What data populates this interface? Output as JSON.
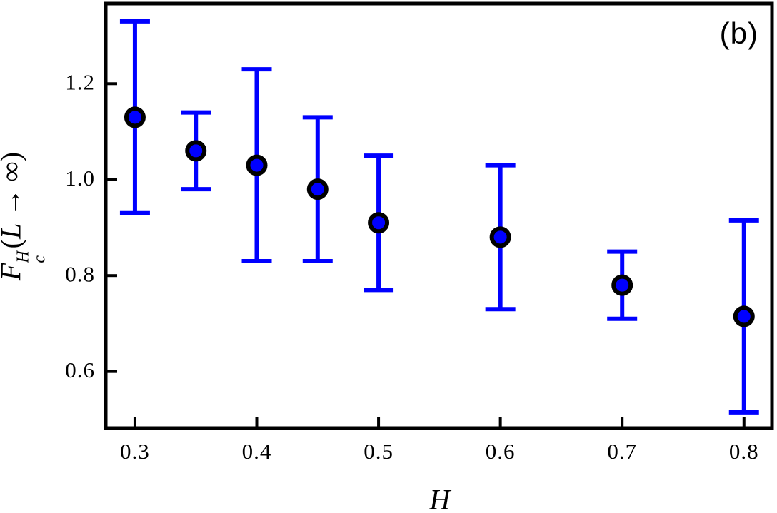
{
  "figure": {
    "panel_label": "(b)",
    "background_color": "#ffffff"
  },
  "chart_data": {
    "type": "scatter",
    "title": "",
    "xlabel": "H",
    "ylabel": {
      "plain": "F_c^H(L → ∞)",
      "base": "F",
      "sup": "H",
      "sub": "c",
      "open": "(",
      "var": "L",
      "arrow": "→",
      "inf": "∞",
      "close": ")"
    },
    "x": [
      0.3,
      0.35,
      0.4,
      0.45,
      0.5,
      0.6,
      0.7,
      0.8
    ],
    "y": [
      1.13,
      1.06,
      1.03,
      0.98,
      0.91,
      0.88,
      0.78,
      0.715
    ],
    "yerr": [
      0.2,
      0.08,
      0.2,
      0.15,
      0.14,
      0.15,
      0.07,
      0.2
    ],
    "xlim": [
      0.276,
      0.823
    ],
    "ylim": [
      0.482,
      1.367
    ],
    "xticks": [
      0.3,
      0.4,
      0.5,
      0.6,
      0.7,
      0.8
    ],
    "xtick_labels": [
      "0.3",
      "0.4",
      "0.5",
      "0.6",
      "0.7",
      "0.8"
    ],
    "yticks": [
      0.6,
      0.8,
      1.0,
      1.2
    ],
    "ytick_labels": [
      "0.6",
      "0.8",
      "1.0",
      "1.2"
    ],
    "grid": false,
    "legend": false,
    "marker": "circle",
    "marker_color": "#0000ff",
    "marker_edge_color": "#000000",
    "errorbar_color": "#0000ff",
    "axes_color": "#000000"
  }
}
